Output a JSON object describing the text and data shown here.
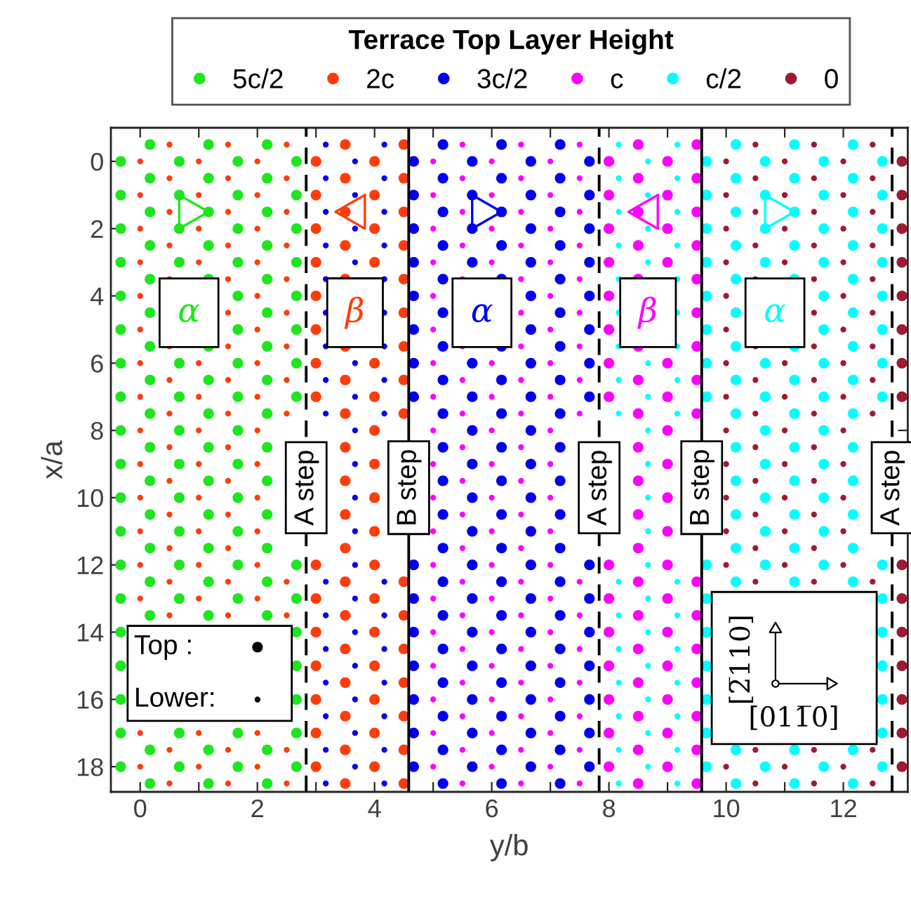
{
  "chart_data": {
    "type": "scatter",
    "xlabel": "y/b",
    "ylabel": "x/a",
    "legend_title": "Terrace Top Layer Height",
    "legend": "top",
    "marker": "circle",
    "xlim": [
      -0.5,
      13.1
    ],
    "ylim": [
      18.75,
      -1
    ],
    "xticks": [
      0,
      {
        "value": 1,
        "label": null
      },
      2,
      {
        "value": 3,
        "label": null
      },
      4,
      {
        "value": 5,
        "label": null
      },
      6,
      {
        "value": 7,
        "label": null
      },
      8,
      {
        "value": 9,
        "label": null
      },
      10,
      {
        "value": 11,
        "label": null
      },
      12
    ],
    "yticks": [
      0,
      2,
      4,
      6,
      8,
      10,
      12,
      14,
      16,
      18
    ],
    "series": [
      {
        "name": "5c/2",
        "color": "#1ee61e",
        "x": [
          -0.333,
          -0.333,
          -0.333,
          -0.333,
          -0.333,
          -0.333,
          -0.333,
          -0.333,
          -0.333,
          -0.333,
          -0.333,
          -0.333,
          -0.333,
          -0.333,
          -0.333,
          -0.333,
          -0.333,
          -0.333,
          -0.333,
          0.667,
          0.667,
          0.667,
          0.667,
          0.667,
          0.667,
          0.667,
          0.667,
          0.667,
          0.667,
          0.667,
          0.667,
          0.667,
          0.667,
          1.667,
          1.667,
          1.667,
          1.667,
          1.667,
          1.667,
          1.667,
          1.667,
          1.667,
          1.667,
          1.667,
          1.667,
          1.667,
          1.667,
          1.667,
          1.667,
          2.667,
          2.667,
          2.667,
          2.667,
          2.667,
          2.667,
          2.667,
          2.667,
          2.667,
          2.667,
          2.667,
          2.667,
          2.667,
          2.667,
          2.667,
          0.167,
          0.167,
          0.167,
          0.167,
          0.167,
          0.167,
          0.167,
          0.167,
          0.167,
          0.167,
          0.167,
          0.167,
          0.167,
          0.167,
          0.167,
          0.167,
          0.167,
          1.167,
          1.167,
          1.167,
          1.167,
          1.167,
          1.167,
          1.167,
          1.167,
          1.167,
          1.167,
          1.167,
          1.167,
          1.167,
          1.167,
          1.167,
          1.167,
          2.167,
          2.167,
          2.167,
          2.167,
          2.167,
          2.167,
          2.167,
          2.167,
          2.167,
          2.167,
          2.167,
          2.167,
          2.167,
          2.167,
          2.167,
          2.167,
          2.167
        ],
        "values": [
          0,
          1,
          2,
          3,
          4,
          5,
          6,
          7,
          8,
          9,
          10,
          11,
          12,
          13,
          14,
          15,
          16,
          17,
          18,
          0,
          1,
          2,
          3,
          6,
          7,
          8,
          9,
          10,
          11,
          12,
          13,
          17,
          18,
          0,
          1,
          2,
          3,
          4,
          5,
          6,
          7,
          8,
          9,
          10,
          11,
          12,
          13,
          17,
          18,
          0,
          1,
          2,
          3,
          4,
          5,
          6,
          7,
          12,
          13,
          14,
          15,
          16,
          17,
          18,
          -0.5,
          0.5,
          1.5,
          2.5,
          3.5,
          4.5,
          5.5,
          6.5,
          7.5,
          8.5,
          9.5,
          10.5,
          11.5,
          12.5,
          13.5,
          17.5,
          18.5,
          -0.5,
          0.5,
          1.5,
          2.5,
          3.5,
          5.5,
          6.5,
          7.5,
          8.5,
          9.5,
          10.5,
          11.5,
          12.5,
          13.5,
          17.5,
          18.5,
          -0.5,
          0.5,
          1.5,
          2.5,
          3.5,
          4.5,
          5.5,
          6.5,
          7.5,
          8.5,
          9.5,
          10.5,
          11.5,
          12.5,
          13.5,
          17.5,
          18.5
        ]
      },
      {
        "color": "#ff3c0a",
        "x": [
          0,
          0,
          0,
          0,
          0,
          0,
          0,
          0,
          0,
          0,
          0,
          0,
          0,
          0,
          0,
          0,
          1,
          1,
          1,
          1,
          1,
          1,
          1,
          1,
          1,
          1,
          1,
          1,
          1,
          1,
          2,
          2,
          2,
          2,
          2,
          2,
          2,
          2,
          2,
          2,
          2,
          2,
          2,
          2,
          2,
          2,
          0.5,
          0.5,
          0.5,
          0.5,
          0.5,
          0.5,
          0.5,
          0.5,
          0.5,
          0.5,
          0.5,
          0.5,
          0.5,
          0.5,
          0.5,
          0.5,
          1.5,
          1.5,
          1.5,
          1.5,
          1.5,
          1.5,
          1.5,
          1.5,
          1.5,
          1.5,
          1.5,
          1.5,
          1.5,
          1.5,
          1.5,
          1.5,
          1.5,
          2.5,
          2.5,
          2.5,
          2.5,
          2.5,
          2.5,
          2.5,
          2.5,
          2.5,
          2.5,
          2.5,
          2.5,
          2.5
        ],
        "values": [
          0,
          1,
          2,
          3,
          4,
          5,
          6,
          7,
          8,
          9,
          10,
          11,
          12,
          13,
          17,
          18,
          0,
          1,
          2,
          3,
          6,
          7,
          8,
          9,
          10,
          11,
          12,
          13,
          17,
          18,
          0,
          1,
          2,
          3,
          4,
          5,
          6,
          7,
          8,
          9,
          10,
          11,
          12,
          13,
          17,
          18,
          -0.5,
          0.5,
          1.5,
          2.5,
          3.5,
          5.5,
          6.5,
          7.5,
          8.5,
          9.5,
          10.5,
          11.5,
          12.5,
          13.5,
          17.5,
          18.5,
          -0.5,
          0.5,
          1.5,
          2.5,
          3.5,
          4.5,
          5.5,
          6.5,
          7.5,
          8.5,
          9.5,
          10.5,
          11.5,
          12.5,
          13.5,
          17.5,
          18.5,
          -0.5,
          0.5,
          1.5,
          2.5,
          3.5,
          4.5,
          5.5,
          6.5,
          7.5,
          12.5,
          13.5,
          17.5,
          18.5
        ]
      },
      {
        "name": "2c",
        "color": "#ff3c0a",
        "x": [
          3,
          3,
          3,
          3,
          3,
          3,
          3,
          3,
          3,
          3,
          3,
          3,
          3,
          3,
          3,
          4,
          4,
          4,
          4,
          4,
          4,
          4,
          4,
          4,
          4,
          4,
          4,
          4,
          4,
          4,
          4,
          4,
          3.5,
          3.5,
          3.5,
          3.5,
          3.5,
          3.5,
          3.5,
          3.5,
          3.5,
          3.5,
          3.5,
          3.5,
          3.5,
          3.5,
          3.5,
          3.5,
          3.5,
          3.5,
          3.5,
          4.5,
          4.5,
          4.5,
          4.5,
          4.5,
          4.5,
          4.5,
          4.5,
          4.5,
          4.5,
          4.5,
          4.5,
          4.5,
          4.5,
          4.5,
          4.5
        ],
        "values": [
          0,
          1,
          2,
          3,
          4,
          5,
          6,
          7,
          12,
          13,
          14,
          15,
          16,
          17,
          18,
          0,
          1,
          2,
          3,
          6,
          7,
          8,
          9,
          10,
          11,
          12,
          13,
          14,
          15,
          16,
          17,
          18,
          -0.5,
          0.5,
          1.5,
          2.5,
          3.5,
          5.5,
          6.5,
          7.5,
          8.5,
          9.5,
          10.5,
          11.5,
          12.5,
          13.5,
          14.5,
          15.5,
          16.5,
          17.5,
          18.5,
          -0.5,
          0.5,
          1.5,
          2.5,
          3.5,
          4.5,
          5.5,
          6.5,
          7.5,
          12.5,
          13.5,
          14.5,
          15.5,
          16.5,
          17.5,
          18.5
        ]
      },
      {
        "color": "#0000f0",
        "x": [
          3.667,
          3.667,
          3.667,
          3.667,
          3.667,
          3.667,
          3.667,
          3.667,
          3.667,
          3.667,
          3.667,
          3.667,
          3.667,
          3.667,
          3.667,
          3.667,
          3.667,
          3.167,
          3.167,
          3.167,
          3.167,
          3.167,
          3.167,
          3.167,
          3.167,
          3.167,
          3.167,
          3.167,
          3.167,
          3.167,
          3.167,
          3.167,
          3.167,
          4.167,
          4.167,
          4.167,
          4.167,
          4.167,
          4.167,
          4.167,
          4.167,
          4.167,
          4.167,
          4.167,
          4.167,
          4.167,
          4.167,
          4.167,
          4.167
        ],
        "values": [
          0,
          1,
          2,
          3,
          6,
          7,
          8,
          9,
          10,
          11,
          12,
          13,
          14,
          15,
          16,
          17,
          18,
          -0.5,
          0.5,
          1.5,
          2.5,
          3.5,
          4.5,
          5.5,
          6.5,
          7.5,
          12.5,
          13.5,
          14.5,
          15.5,
          16.5,
          17.5,
          18.5,
          -0.5,
          0.5,
          1.5,
          2.5,
          3.5,
          4.5,
          5.5,
          6.5,
          7.5,
          12.5,
          13.5,
          14.5,
          15.5,
          16.5,
          17.5,
          18.5
        ]
      },
      {
        "name": "3c/2",
        "color": "#0000f0",
        "x": [
          4.667,
          4.667,
          4.667,
          4.667,
          4.667,
          4.667,
          4.667,
          4.667,
          4.667,
          4.667,
          4.667,
          4.667,
          4.667,
          4.667,
          4.667,
          5.667,
          5.667,
          5.667,
          5.667,
          5.667,
          5.667,
          5.667,
          5.667,
          5.667,
          5.667,
          5.667,
          5.667,
          5.667,
          5.667,
          5.667,
          5.667,
          5.667,
          6.667,
          6.667,
          6.667,
          6.667,
          6.667,
          6.667,
          6.667,
          6.667,
          6.667,
          6.667,
          6.667,
          6.667,
          6.667,
          6.667,
          6.667,
          6.667,
          6.667,
          6.667,
          6.667,
          7.667,
          7.667,
          7.667,
          7.667,
          7.667,
          7.667,
          7.667,
          7.667,
          7.667,
          7.667,
          7.667,
          7.667,
          7.667,
          7.667,
          7.667,
          5.167,
          5.167,
          5.167,
          5.167,
          5.167,
          5.167,
          5.167,
          5.167,
          5.167,
          5.167,
          5.167,
          5.167,
          5.167,
          5.167,
          5.167,
          5.167,
          5.167,
          5.167,
          5.167,
          5.167,
          6.167,
          6.167,
          6.167,
          6.167,
          6.167,
          6.167,
          6.167,
          6.167,
          6.167,
          6.167,
          6.167,
          6.167,
          6.167,
          6.167,
          6.167,
          6.167,
          6.167,
          6.167,
          6.167,
          7.167,
          7.167,
          7.167,
          7.167,
          7.167,
          7.167,
          7.167,
          7.167,
          7.167,
          7.167,
          7.167,
          7.167,
          7.167,
          7.167,
          7.167,
          7.167,
          7.167,
          7.167,
          7.167,
          7.167
        ],
        "values": [
          0,
          1,
          2,
          3,
          4,
          5,
          6,
          7,
          12,
          13,
          14,
          15,
          16,
          17,
          18,
          0,
          1,
          2,
          3,
          6,
          7,
          8,
          9,
          10,
          11,
          12,
          13,
          14,
          15,
          16,
          17,
          18,
          0,
          1,
          2,
          3,
          4,
          5,
          6,
          7,
          8,
          9,
          10,
          11,
          12,
          13,
          14,
          15,
          16,
          17,
          18,
          0,
          1,
          2,
          3,
          4,
          5,
          6,
          7,
          12,
          13,
          14,
          15,
          16,
          17,
          18,
          -0.5,
          0.5,
          1.5,
          2.5,
          3.5,
          4.5,
          5.5,
          6.5,
          7.5,
          8.5,
          9.5,
          10.5,
          11.5,
          12.5,
          13.5,
          14.5,
          15.5,
          16.5,
          17.5,
          18.5,
          -0.5,
          0.5,
          1.5,
          2.5,
          3.5,
          5.5,
          6.5,
          7.5,
          8.5,
          9.5,
          10.5,
          11.5,
          12.5,
          13.5,
          14.5,
          15.5,
          16.5,
          17.5,
          18.5,
          -0.5,
          0.5,
          1.5,
          2.5,
          3.5,
          4.5,
          5.5,
          6.5,
          7.5,
          8.5,
          9.5,
          10.5,
          11.5,
          12.5,
          13.5,
          14.5,
          15.5,
          16.5,
          17.5,
          18.5
        ]
      },
      {
        "color": "#ff00ff",
        "x": [
          5,
          5,
          5,
          5,
          5,
          5,
          5,
          5,
          5,
          5,
          5,
          5,
          5,
          5,
          5,
          5,
          5,
          5,
          5,
          6,
          6,
          6,
          6,
          6,
          6,
          6,
          6,
          6,
          6,
          6,
          6,
          6,
          6,
          6,
          6,
          6,
          7,
          7,
          7,
          7,
          7,
          7,
          7,
          7,
          7,
          7,
          7,
          7,
          7,
          7,
          7,
          7,
          7,
          7,
          7,
          5.5,
          5.5,
          5.5,
          5.5,
          5.5,
          5.5,
          5.5,
          5.5,
          5.5,
          5.5,
          5.5,
          5.5,
          5.5,
          5.5,
          5.5,
          5.5,
          5.5,
          5.5,
          5.5,
          6.5,
          6.5,
          6.5,
          6.5,
          6.5,
          6.5,
          6.5,
          6.5,
          6.5,
          6.5,
          6.5,
          6.5,
          6.5,
          6.5,
          6.5,
          6.5,
          6.5,
          6.5,
          6.5,
          6.5,
          7.5,
          7.5,
          7.5,
          7.5,
          7.5,
          7.5,
          7.5,
          7.5,
          7.5,
          7.5,
          7.5,
          7.5,
          7.5,
          7.5,
          7.5,
          7.5
        ],
        "values": [
          0,
          1,
          2,
          3,
          4,
          5,
          6,
          7,
          8,
          9,
          10,
          11,
          12,
          13,
          14,
          15,
          16,
          17,
          18,
          0,
          1,
          2,
          3,
          6,
          7,
          8,
          9,
          10,
          11,
          12,
          13,
          14,
          15,
          16,
          17,
          18,
          0,
          1,
          2,
          3,
          4,
          5,
          6,
          7,
          8,
          9,
          10,
          11,
          12,
          13,
          14,
          15,
          16,
          17,
          18,
          -0.5,
          0.5,
          1.5,
          2.5,
          3.5,
          5.5,
          6.5,
          7.5,
          8.5,
          9.5,
          10.5,
          11.5,
          12.5,
          13.5,
          14.5,
          15.5,
          16.5,
          17.5,
          18.5,
          -0.5,
          0.5,
          1.5,
          2.5,
          3.5,
          4.5,
          5.5,
          6.5,
          7.5,
          8.5,
          9.5,
          10.5,
          11.5,
          12.5,
          13.5,
          14.5,
          15.5,
          16.5,
          17.5,
          18.5,
          -0.5,
          0.5,
          1.5,
          2.5,
          3.5,
          4.5,
          5.5,
          6.5,
          7.5,
          12.5,
          13.5,
          14.5,
          15.5,
          16.5,
          17.5,
          18.5
        ]
      },
      {
        "name": "c",
        "color": "#ff00ff",
        "x": [
          8,
          8,
          8,
          8,
          8,
          8,
          8,
          8,
          8,
          8,
          8,
          8,
          8,
          8,
          8,
          9,
          9,
          9,
          9,
          9,
          9,
          9,
          9,
          9,
          9,
          9,
          9,
          9,
          9,
          9,
          9,
          9,
          8.5,
          8.5,
          8.5,
          8.5,
          8.5,
          8.5,
          8.5,
          8.5,
          8.5,
          8.5,
          8.5,
          8.5,
          8.5,
          8.5,
          8.5,
          8.5,
          8.5,
          8.5,
          8.5,
          9.5,
          9.5,
          9.5,
          9.5,
          9.5,
          9.5,
          9.5,
          9.5,
          9.5,
          9.5,
          9.5,
          9.5,
          9.5,
          9.5,
          9.5,
          9.5
        ],
        "values": [
          0,
          1,
          2,
          3,
          4,
          5,
          6,
          7,
          12,
          13,
          14,
          15,
          16,
          17,
          18,
          0,
          1,
          2,
          3,
          6,
          7,
          8,
          9,
          10,
          11,
          12,
          13,
          14,
          15,
          16,
          17,
          18,
          -0.5,
          0.5,
          1.5,
          2.5,
          3.5,
          5.5,
          6.5,
          7.5,
          8.5,
          9.5,
          10.5,
          11.5,
          12.5,
          13.5,
          14.5,
          15.5,
          16.5,
          17.5,
          18.5,
          -0.5,
          0.5,
          1.5,
          2.5,
          3.5,
          4.5,
          5.5,
          6.5,
          7.5,
          12.5,
          13.5,
          14.5,
          15.5,
          16.5,
          17.5,
          18.5
        ]
      },
      {
        "color": "#00ffff",
        "x": [
          8.667,
          8.667,
          8.667,
          8.667,
          8.667,
          8.667,
          8.667,
          8.667,
          8.667,
          8.667,
          8.667,
          8.667,
          8.667,
          8.667,
          8.667,
          8.667,
          8.667,
          8.167,
          8.167,
          8.167,
          8.167,
          8.167,
          8.167,
          8.167,
          8.167,
          8.167,
          8.167,
          8.167,
          8.167,
          8.167,
          8.167,
          8.167,
          8.167,
          9.167,
          9.167,
          9.167,
          9.167,
          9.167,
          9.167,
          9.167,
          9.167,
          9.167,
          9.167,
          9.167,
          9.167,
          9.167,
          9.167,
          9.167,
          9.167
        ],
        "values": [
          0,
          1,
          2,
          3,
          6,
          7,
          8,
          9,
          10,
          11,
          12,
          13,
          14,
          15,
          16,
          17,
          18,
          -0.5,
          0.5,
          1.5,
          2.5,
          3.5,
          4.5,
          5.5,
          6.5,
          7.5,
          12.5,
          13.5,
          14.5,
          15.5,
          16.5,
          17.5,
          18.5,
          -0.5,
          0.5,
          1.5,
          2.5,
          3.5,
          4.5,
          5.5,
          6.5,
          7.5,
          12.5,
          13.5,
          14.5,
          15.5,
          16.5,
          17.5,
          18.5
        ]
      },
      {
        "name": "c/2",
        "color": "#00ffff",
        "x": [
          9.667,
          9.667,
          9.667,
          9.667,
          9.667,
          9.667,
          9.667,
          9.667,
          9.667,
          9.667,
          9.667,
          9.667,
          9.667,
          9.667,
          9.667,
          10.667,
          10.667,
          10.667,
          10.667,
          10.667,
          10.667,
          10.667,
          10.667,
          10.667,
          10.667,
          10.667,
          10.667,
          11.667,
          11.667,
          11.667,
          11.667,
          11.667,
          11.667,
          11.667,
          11.667,
          11.667,
          11.667,
          11.667,
          11.667,
          11.667,
          11.667,
          12.667,
          12.667,
          12.667,
          12.667,
          12.667,
          12.667,
          12.667,
          12.667,
          12.667,
          12.667,
          12.667,
          12.667,
          12.667,
          12.667,
          12.667,
          10.167,
          10.167,
          10.167,
          10.167,
          10.167,
          10.167,
          10.167,
          10.167,
          10.167,
          10.167,
          10.167,
          10.167,
          10.167,
          10.167,
          10.167,
          10.167,
          11.167,
          11.167,
          11.167,
          11.167,
          11.167,
          11.167,
          11.167,
          11.167,
          11.167,
          11.167,
          11.167,
          11.167,
          11.167,
          11.167,
          11.167,
          12.167,
          12.167,
          12.167,
          12.167,
          12.167,
          12.167,
          12.167,
          12.167,
          12.167,
          12.167,
          12.167,
          12.167,
          12.167,
          12.167,
          12.167,
          12.167
        ],
        "values": [
          0,
          1,
          2,
          3,
          4,
          5,
          6,
          7,
          12,
          13,
          14,
          15,
          16,
          17,
          18,
          0,
          1,
          2,
          3,
          6,
          7,
          8,
          9,
          10,
          11,
          12,
          18,
          0,
          1,
          2,
          3,
          4,
          5,
          6,
          7,
          8,
          9,
          10,
          11,
          12,
          18,
          0,
          1,
          2,
          3,
          4,
          5,
          6,
          7,
          12,
          13,
          14,
          15,
          16,
          17,
          18,
          -0.5,
          0.5,
          1.5,
          2.5,
          3.5,
          4.5,
          5.5,
          6.5,
          7.5,
          8.5,
          9.5,
          10.5,
          11.5,
          12.5,
          17.5,
          18.5,
          -0.5,
          0.5,
          1.5,
          2.5,
          3.5,
          5.5,
          6.5,
          7.5,
          8.5,
          9.5,
          10.5,
          11.5,
          12.5,
          17.5,
          18.5,
          -0.5,
          0.5,
          1.5,
          2.5,
          3.5,
          4.5,
          5.5,
          6.5,
          7.5,
          8.5,
          9.5,
          10.5,
          11.5,
          12.5,
          17.5,
          18.5
        ]
      },
      {
        "color": "#9e1a32",
        "x": [
          10,
          10,
          10,
          10,
          10,
          10,
          10,
          10,
          10,
          10,
          10,
          10,
          10,
          10,
          11,
          11,
          11,
          11,
          11,
          11,
          11,
          11,
          11,
          11,
          11,
          11,
          12,
          12,
          12,
          12,
          12,
          12,
          12,
          12,
          12,
          12,
          12,
          12,
          12,
          12,
          10.5,
          10.5,
          10.5,
          10.5,
          10.5,
          10.5,
          10.5,
          10.5,
          10.5,
          10.5,
          10.5,
          10.5,
          10.5,
          10.5,
          10.5,
          11.5,
          11.5,
          11.5,
          11.5,
          11.5,
          11.5,
          11.5,
          11.5,
          11.5,
          11.5,
          11.5,
          11.5,
          11.5,
          11.5,
          11.5,
          11.5,
          12.5,
          12.5,
          12.5,
          12.5,
          12.5,
          12.5,
          12.5,
          12.5,
          12.5,
          12.5,
          12.5,
          12.5
        ],
        "values": [
          0,
          1,
          2,
          3,
          4,
          5,
          6,
          7,
          8,
          9,
          10,
          11,
          12,
          18,
          0,
          1,
          2,
          3,
          6,
          7,
          8,
          9,
          10,
          11,
          12,
          18,
          0,
          1,
          2,
          3,
          4,
          5,
          6,
          7,
          8,
          9,
          10,
          11,
          12,
          18,
          -0.5,
          0.5,
          1.5,
          2.5,
          3.5,
          5.5,
          6.5,
          7.5,
          8.5,
          9.5,
          10.5,
          11.5,
          12.5,
          17.5,
          18.5,
          -0.5,
          0.5,
          1.5,
          2.5,
          3.5,
          4.5,
          5.5,
          6.5,
          7.5,
          8.5,
          9.5,
          10.5,
          11.5,
          12.5,
          17.5,
          18.5,
          -0.5,
          0.5,
          1.5,
          2.5,
          3.5,
          4.5,
          5.5,
          6.5,
          7.5,
          12.5,
          17.5,
          18.5
        ]
      },
      {
        "name": "0",
        "color": "#9e1a32",
        "x": [
          13,
          13,
          13,
          13,
          13,
          13,
          13,
          13,
          13,
          13,
          13,
          13,
          13,
          13,
          13
        ],
        "values": [
          0,
          1,
          2,
          3,
          4,
          5,
          6,
          7,
          12,
          13,
          14,
          15,
          16,
          17,
          18
        ]
      }
    ],
    "ref_lines": [
      {
        "axis": "x",
        "value": 2.833,
        "label": "A step",
        "line_style": "dashed",
        "color": "#000000"
      },
      {
        "axis": "x",
        "value": 4.583,
        "label": "B step",
        "line_style": "solid",
        "color": "#000000"
      },
      {
        "axis": "x",
        "value": 7.833,
        "label": "A step",
        "line_style": "dashed",
        "color": "#000000"
      },
      {
        "axis": "x",
        "value": 9.583,
        "label": "B step",
        "line_style": "solid",
        "color": "#000000"
      },
      {
        "axis": "x",
        "value": 12.833,
        "label": "A step",
        "line_style": "dashed",
        "color": "#000000"
      }
    ],
    "annotations": [
      "α",
      "β",
      "α",
      "β",
      "α",
      "Top :",
      "Lower:",
      "[2̅110]",
      "[011̅0]"
    ]
  }
}
